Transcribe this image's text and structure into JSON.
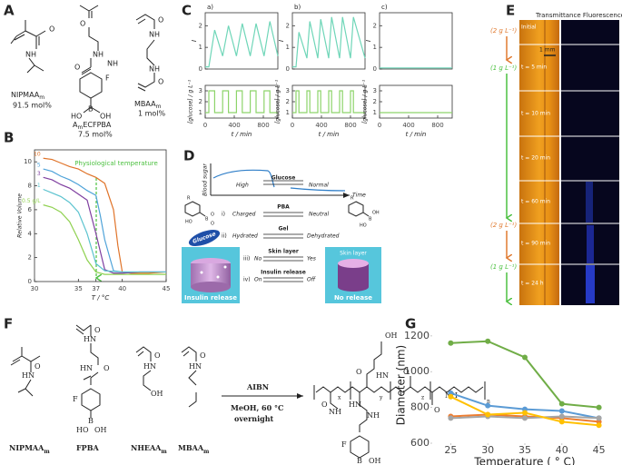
{
  "panel_labels": [
    "A",
    "B",
    "C",
    "D",
    "E",
    "F",
    "G"
  ],
  "panel_a": {
    "monomers": [
      {
        "name": "NIPMAA",
        "sub": "m",
        "amount": "91.5 mol%"
      },
      {
        "name": "A",
        "sub": "m",
        "name2": "ECFPBA",
        "amount": "7.5 mol%"
      },
      {
        "name": "MBAA",
        "sub": "m",
        "amount": "1 mol%"
      }
    ],
    "atoms": [
      "O",
      "NH",
      "O",
      "NH",
      "O",
      "NH",
      "F",
      "B",
      "OH",
      "HO",
      "O",
      "NH",
      "NH",
      "O"
    ]
  },
  "panel_d": {
    "axis_y": "Blood sugar",
    "axis_x": "Time",
    "high": "High",
    "glucose": "Glucose",
    "normal": "Normal",
    "rows": [
      {
        "num": "i)",
        "title": "PBA",
        "left": "Charged",
        "right": "Neutral"
      },
      {
        "num": "ii)",
        "title": "Gel",
        "left": "Hydrated",
        "right": "Dehydrated"
      },
      {
        "num": "iii)",
        "title": "Skin layer",
        "left": "No",
        "right": "Yes"
      },
      {
        "num": "iv)",
        "title": "Insulin release",
        "left": "On",
        "right": "Off"
      }
    ],
    "ellipse": "Glucose",
    "box_left": "Insulin release",
    "box_right_top": "Skin layer",
    "box_right_bottom": "No release",
    "atoms": [
      "R",
      "B",
      "HO",
      "O",
      "O",
      "R",
      "B",
      "OH",
      "HO"
    ]
  },
  "panel_e": {
    "header": "Transmittance Fluorescence",
    "scale": "1 mm",
    "times": [
      "Initial",
      "t = 5 min",
      "t = 10 min",
      "t = 20 min",
      "t = 60 min",
      "t = 90 min",
      "t = 24 h"
    ],
    "concentrations": [
      "(2 g L⁻¹)",
      "(1 g L⁻¹)",
      "(2 g L⁻¹)",
      "(1 g L⁻¹)"
    ]
  },
  "panel_f": {
    "monomers": [
      {
        "name": "NIPMAA",
        "sub": "m"
      },
      {
        "name": "FPBA",
        "sub": ""
      },
      {
        "name": "NHEAA",
        "sub": "m"
      },
      {
        "name": "MBAA",
        "sub": "m"
      }
    ],
    "conditions": [
      "AIBN",
      "MeOH, 60 °C",
      "overnight"
    ],
    "atoms": [
      "O",
      "HN",
      "O",
      "HN",
      "F",
      "B",
      "HO",
      "OH",
      "O",
      "HN",
      "OH",
      "O",
      "HN",
      "HN",
      "O",
      "OH",
      "O",
      "HN",
      "O",
      "NH",
      "HN",
      "NH",
      "O",
      "O",
      "NH",
      "F",
      "B",
      "HO",
      "OH"
    ],
    "indices": [
      "x",
      "y",
      "z",
      "n"
    ]
  },
  "chart_data": [
    {
      "type": "line",
      "xlabel": "T / °C",
      "ylabel": "Relative Volume",
      "frame": true,
      "xlim": [
        30,
        45
      ],
      "xticks": [
        30,
        35,
        37,
        40,
        45
      ],
      "ylim": [
        0,
        11
      ],
      "yticks": [
        0,
        2,
        4,
        6,
        8,
        10
      ],
      "annotation": "Physiological temperature",
      "series": [
        {
          "name": "10",
          "color": "#e0742a",
          "x": [
            31,
            32,
            33,
            34,
            35,
            36,
            37,
            38,
            39,
            39.5,
            40,
            41,
            42,
            43,
            44,
            45
          ],
          "values": [
            10.3,
            10.2,
            9.9,
            9.6,
            9.4,
            9.0,
            8.7,
            8.2,
            6.0,
            3.0,
            0.8,
            0.7,
            0.7,
            0.7,
            0.75,
            0.8
          ]
        },
        {
          "name": "5",
          "color": "#4fa3d9",
          "x": [
            31,
            32,
            33,
            34,
            35,
            36,
            37,
            37.5,
            38,
            39,
            40,
            42,
            45
          ],
          "values": [
            9.4,
            9.2,
            8.8,
            8.5,
            8.1,
            7.6,
            7.2,
            5.5,
            3.5,
            0.9,
            0.8,
            0.8,
            0.8
          ]
        },
        {
          "name": "3",
          "color": "#7f3fa0",
          "x": [
            31,
            32,
            33,
            34,
            35,
            36,
            37,
            38,
            39,
            40,
            42,
            45
          ],
          "values": [
            8.7,
            8.5,
            8.1,
            7.8,
            7.3,
            6.8,
            4.0,
            1.0,
            0.7,
            0.7,
            0.8,
            0.8
          ]
        },
        {
          "name": "1",
          "color": "#5cc3cf",
          "x": [
            31,
            32,
            33,
            34,
            35,
            36,
            37,
            38,
            40,
            42,
            45
          ],
          "values": [
            7.7,
            7.4,
            7.1,
            6.6,
            5.8,
            4.0,
            1.5,
            0.9,
            0.8,
            0.8,
            0.8
          ]
        },
        {
          "name": "0.5 g/L",
          "color": "#8fd150",
          "x": [
            31,
            32,
            33,
            34,
            35,
            36,
            37,
            38,
            40,
            45
          ],
          "values": [
            6.4,
            6.2,
            5.8,
            5.0,
            3.5,
            1.8,
            0.8,
            0.6,
            0.6,
            0.6
          ]
        }
      ]
    },
    {
      "type": "line",
      "title": "a)",
      "ylabel": "I",
      "frame": true,
      "xlim": [
        0,
        1000
      ],
      "ylim": [
        0,
        2.6
      ],
      "yticks": [
        0,
        1,
        2
      ],
      "series": [
        {
          "color": "#6fd6b8",
          "x": [
            0,
            50,
            130,
            240,
            320,
            430,
            510,
            620,
            700,
            810,
            890,
            1000
          ],
          "values": [
            0.1,
            0.1,
            1.8,
            0.6,
            2.0,
            0.6,
            2.1,
            0.6,
            2.1,
            0.6,
            2.2,
            0.6
          ]
        }
      ]
    },
    {
      "type": "line",
      "xlabel": "t / min",
      "ylabel": "[glucose] / g L⁻¹",
      "frame": true,
      "xlim": [
        0,
        1000
      ],
      "xticks": [
        0,
        400,
        800
      ],
      "ylim": [
        0.5,
        3.5
      ],
      "yticks": [
        1,
        2,
        3
      ],
      "series": [
        {
          "color": "#8dd46a",
          "x": [
            0,
            50,
            50,
            130,
            130,
            240,
            240,
            320,
            320,
            430,
            430,
            510,
            510,
            620,
            620,
            700,
            700,
            810,
            810,
            890,
            890,
            1000
          ],
          "values": [
            1,
            1,
            3,
            3,
            1,
            1,
            3,
            3,
            1,
            1,
            3,
            3,
            1,
            1,
            3,
            3,
            1,
            1,
            3,
            3,
            1,
            1
          ]
        }
      ]
    },
    {
      "type": "line",
      "title": "b)",
      "ylabel": "I",
      "frame": true,
      "xlim": [
        0,
        1000
      ],
      "ylim": [
        0,
        2.6
      ],
      "yticks": [
        0,
        1,
        2
      ],
      "series": [
        {
          "color": "#6fd6b8",
          "x": [
            0,
            50,
            90,
            200,
            240,
            350,
            390,
            500,
            540,
            650,
            690,
            800,
            840,
            1000
          ],
          "values": [
            0.1,
            0.1,
            1.7,
            0.5,
            2.2,
            0.5,
            2.3,
            0.5,
            2.4,
            0.5,
            2.4,
            0.5,
            2.4,
            0.5
          ]
        }
      ]
    },
    {
      "type": "line",
      "xlabel": "t / min",
      "ylabel": "[glucose] / g L⁻¹",
      "frame": true,
      "xlim": [
        0,
        1000
      ],
      "xticks": [
        0,
        400,
        800
      ],
      "ylim": [
        0.5,
        3.5
      ],
      "yticks": [
        1,
        2,
        3
      ],
      "series": [
        {
          "color": "#8dd46a",
          "x": [
            0,
            50,
            50,
            90,
            90,
            200,
            200,
            240,
            240,
            350,
            350,
            390,
            390,
            500,
            500,
            540,
            540,
            650,
            650,
            690,
            690,
            800,
            800,
            840,
            840,
            1000
          ],
          "values": [
            1,
            1,
            3,
            3,
            1,
            1,
            3,
            3,
            1,
            1,
            3,
            3,
            1,
            1,
            3,
            3,
            1,
            1,
            3,
            3,
            1,
            1,
            3,
            3,
            1,
            1
          ]
        }
      ]
    },
    {
      "type": "line",
      "title": "c)",
      "ylabel": "I",
      "frame": true,
      "xlim": [
        0,
        1000
      ],
      "ylim": [
        0,
        2.6
      ],
      "yticks": [
        0,
        1,
        2
      ],
      "series": [
        {
          "color": "#6fd6b8",
          "x": [
            0,
            1000
          ],
          "values": [
            0.05,
            0.05
          ]
        }
      ]
    },
    {
      "type": "line",
      "xlabel": "t / min",
      "ylabel": "[glucose] / g L⁻¹",
      "frame": true,
      "xlim": [
        0,
        1000
      ],
      "xticks": [
        0,
        400,
        800
      ],
      "ylim": [
        0.5,
        3.5
      ],
      "yticks": [
        1,
        2,
        3
      ],
      "series": [
        {
          "color": "#8dd46a",
          "x": [
            0,
            1000
          ],
          "values": [
            1,
            1
          ]
        }
      ]
    },
    {
      "type": "line",
      "xlabel": "Temperature ( ° C)",
      "ylabel": "Diameter (nm)",
      "markers": true,
      "xlim": [
        22.5,
        47.5
      ],
      "xticks": [
        25,
        30,
        35,
        40,
        45
      ],
      "ylim": [
        600,
        1250
      ],
      "yticks": [
        600,
        800,
        1000,
        1200
      ],
      "series": [
        {
          "color": "#70ad47",
          "x": [
            25,
            30,
            35,
            40,
            45
          ],
          "values": [
            1160,
            1170,
            1080,
            820,
            800
          ]
        },
        {
          "color": "#5b9bd5",
          "x": [
            25,
            30,
            35,
            40,
            45
          ],
          "values": [
            880,
            810,
            790,
            780,
            740
          ]
        },
        {
          "color": "#ed7d31",
          "x": [
            25,
            30,
            35,
            40,
            45
          ],
          "values": [
            750,
            760,
            750,
            740,
            720
          ]
        },
        {
          "color": "#a5a5a5",
          "x": [
            25,
            30,
            35,
            40,
            45
          ],
          "values": [
            740,
            750,
            740,
            750,
            740
          ]
        },
        {
          "color": "#ffc000",
          "x": [
            25,
            30,
            35,
            40,
            45
          ],
          "values": [
            860,
            760,
            770,
            720,
            700
          ]
        }
      ]
    }
  ]
}
